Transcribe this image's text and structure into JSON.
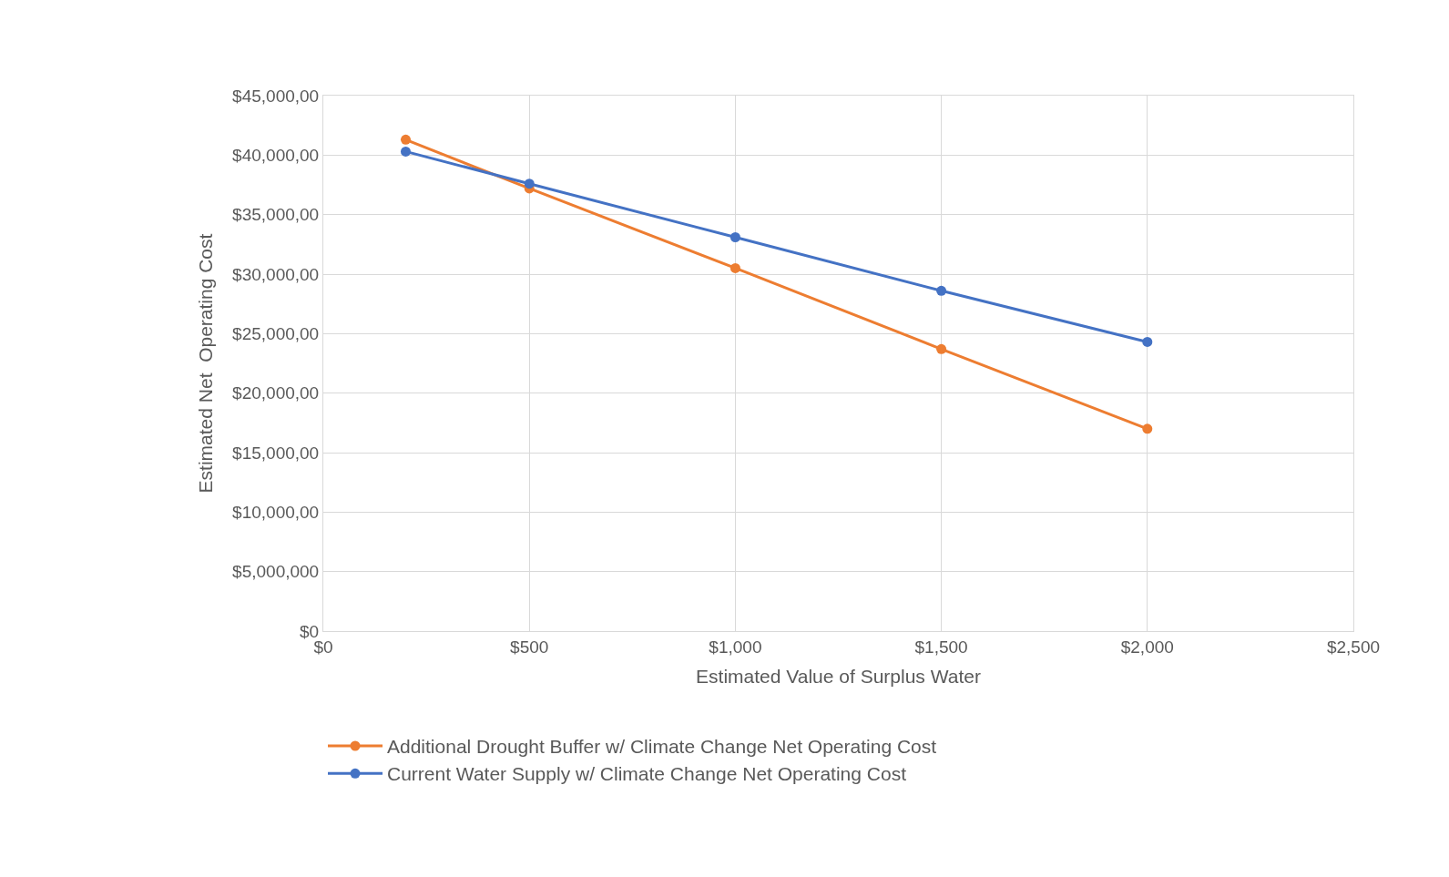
{
  "chart_data": {
    "type": "line",
    "xlabel": "Estimated Value of Surplus Water",
    "ylabel": "Estimated Net  Operating Cost",
    "x": [
      200,
      500,
      1000,
      1500,
      2000
    ],
    "series": [
      {
        "name": "Additional Drought Buffer w/ Climate Change Net Operating Cost",
        "color": "#ed7d31",
        "values": [
          41300000,
          37200000,
          30500000,
          23700000,
          17000000
        ]
      },
      {
        "name": "Current Water Supply w/ Climate Change Net Operating Cost",
        "color": "#4472c4",
        "values": [
          40300000,
          37600000,
          33100000,
          28600000,
          24300000
        ]
      }
    ],
    "xlim": [
      0,
      2500
    ],
    "xticks": [
      {
        "value": 0,
        "label": "$0"
      },
      {
        "value": 500,
        "label": "$500"
      },
      {
        "value": 1000,
        "label": "$1,000"
      },
      {
        "value": 1500,
        "label": "$1,500"
      },
      {
        "value": 2000,
        "label": "$2,000"
      },
      {
        "value": 2500,
        "label": "$2,500"
      }
    ],
    "ylim": [
      0,
      45000000
    ],
    "yticks": [
      {
        "value": 0,
        "label": "$0"
      },
      {
        "value": 5000000,
        "label": "$5,000,000"
      },
      {
        "value": 10000000,
        "label": "$10,000,00"
      },
      {
        "value": 15000000,
        "label": "$15,000,00"
      },
      {
        "value": 20000000,
        "label": "$20,000,00"
      },
      {
        "value": 25000000,
        "label": "$25,000,00"
      },
      {
        "value": 30000000,
        "label": "$30,000,00"
      },
      {
        "value": 35000000,
        "label": "$35,000,00"
      },
      {
        "value": 40000000,
        "label": "$40,000,00"
      },
      {
        "value": 45000000,
        "label": "$45,000,00"
      }
    ],
    "grid": true,
    "legend": "bottom",
    "marker": "circle",
    "line_style": "solid"
  }
}
